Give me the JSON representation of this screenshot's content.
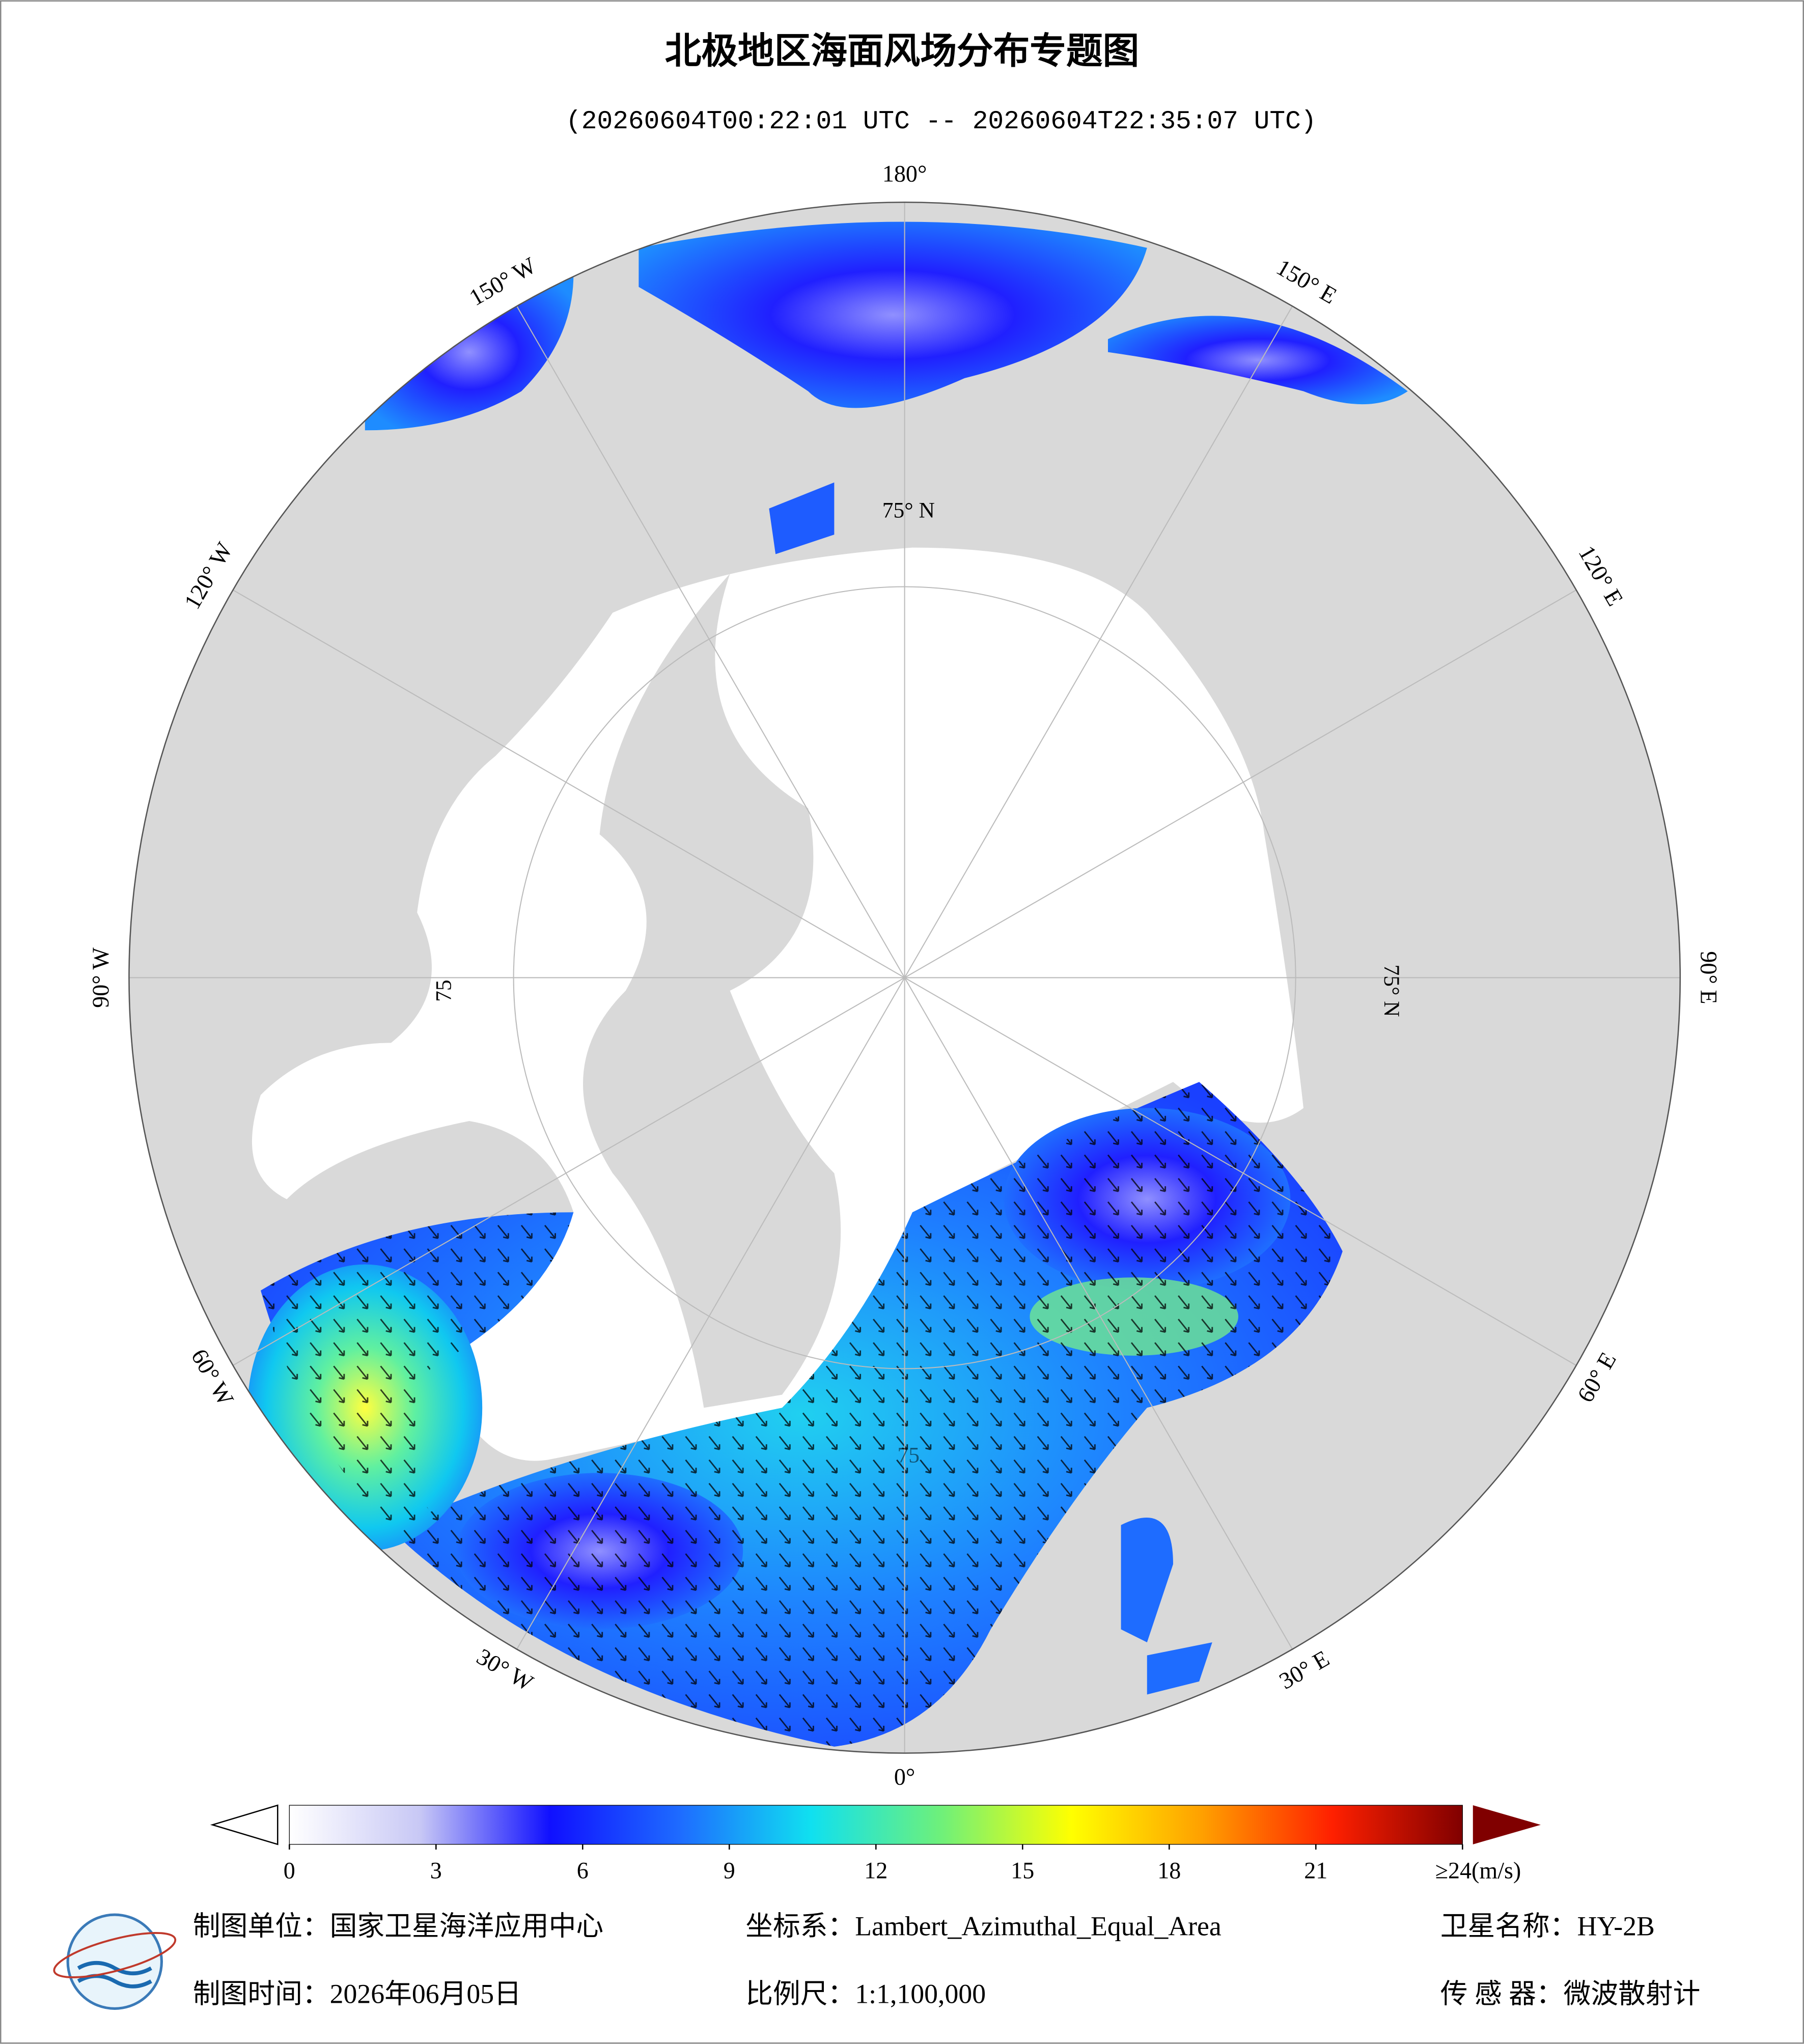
{
  "header": {
    "title": "北极地区海面风场分布专题图",
    "subtitle": "(20260604T00:22:01 UTC -- 20260604T22:35:07 UTC)"
  },
  "map": {
    "longitude_labels": [
      "180°",
      "150° E",
      "120° E",
      "90° E",
      "60° E",
      "30° E",
      "0°",
      "30° W",
      "60° W",
      "90° W",
      "120° W",
      "150° W"
    ],
    "latitude_labels": [
      "75° N",
      "75° N",
      "75",
      "75"
    ]
  },
  "colorbar": {
    "range": [
      0,
      24
    ],
    "ticks": [
      0,
      3,
      6,
      9,
      12,
      15,
      18,
      21,
      {
        "value": 24,
        "label": "≥24(m/s)"
      }
    ],
    "colors": [
      "#ffffff",
      "#c8c8f5",
      "#1010ff",
      "#1e6cff",
      "#10e0f0",
      "#6ef07a",
      "#ffff00",
      "#ffa000",
      "#ff2000",
      "#800000"
    ]
  },
  "footer": {
    "rows": [
      [
        "制图单位：国家卫星海洋应用中心",
        "坐标系：Lambert_Azimuthal_Equal_Area",
        "卫星名称：HY-2B"
      ],
      [
        "制图时间：2026年06月05日",
        "比例尺：1:1,100,000",
        "传 感 器：微波散射计"
      ]
    ]
  }
}
